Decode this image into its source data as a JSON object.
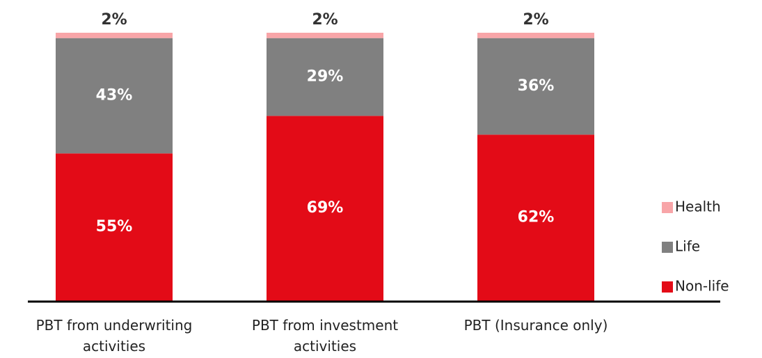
{
  "chart_data": {
    "type": "stacked_bar",
    "categories": [
      "PBT from underwriting activities",
      "PBT from investment activities",
      "PBT (Insurance only)"
    ],
    "series": [
      {
        "name": "Non-life",
        "color": "#e30b17",
        "values": [
          55,
          69,
          62
        ],
        "value_labels": [
          "55%",
          "69%",
          "62%"
        ]
      },
      {
        "name": "Life",
        "color": "#808080",
        "values": [
          43,
          29,
          36
        ],
        "value_labels": [
          "43%",
          "29%",
          "36%"
        ]
      },
      {
        "name": "Health",
        "color": "#f8a5a8",
        "values": [
          2,
          2,
          2
        ],
        "value_labels": [
          "2%",
          "2%",
          "2%"
        ]
      }
    ],
    "ylim": [
      0,
      100
    ],
    "legend": "right"
  }
}
